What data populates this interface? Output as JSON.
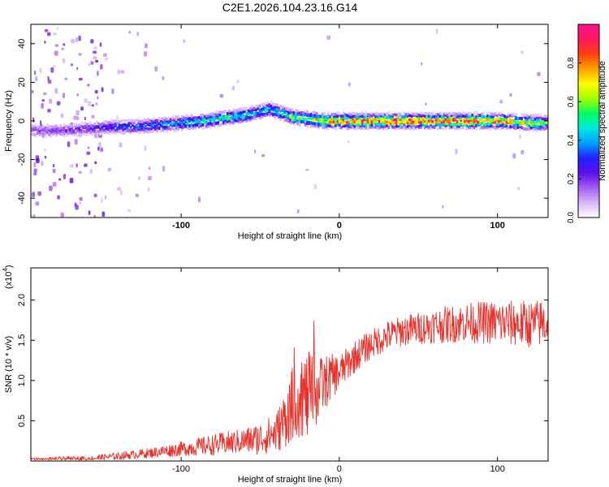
{
  "title": "C2E1.2026.104.23.16.G14",
  "chart_data": [
    {
      "type": "heatmap",
      "name": "spectrogram",
      "xlabel": "Height of straight line (km)",
      "ylabel": "Frequency (Hz)",
      "xlim": [
        -195,
        132
      ],
      "ylim": [
        -50,
        50
      ],
      "xticks": [
        -100,
        0,
        100
      ],
      "yticks": [
        -40,
        -20,
        0,
        20,
        40
      ],
      "colorbar": {
        "label": "Normalized spectral amplitude",
        "range": [
          0,
          1
        ],
        "ticks": [
          "0.0",
          "0.2",
          "0.4",
          "0.6",
          "0.8"
        ],
        "colors": [
          "#ffffff",
          "#d8b6f6",
          "#a55cf2",
          "#5a10e8",
          "#2020ff",
          "#00a0ff",
          "#00e8e0",
          "#00ff60",
          "#a0ff00",
          "#ffff00",
          "#ffa000",
          "#ff4010",
          "#ff1860",
          "#ff1090"
        ]
      },
      "ridge": {
        "description_x_km": [
          -195,
          -180,
          -160,
          -145,
          -130,
          -115,
          -100,
          -85,
          -70,
          -60,
          -50,
          -45,
          -40,
          -30,
          -20,
          -10,
          0,
          20,
          40,
          60,
          80,
          100,
          120,
          132
        ],
        "frequency_hz": [
          -5,
          -5,
          -4,
          -3,
          -3,
          -2,
          -1,
          0,
          2,
          3,
          5,
          6,
          5,
          2,
          1,
          0,
          0,
          0,
          0,
          0,
          0,
          0,
          -1,
          -1
        ],
        "amplitude": [
          0.18,
          0.2,
          0.22,
          0.3,
          0.35,
          0.4,
          0.45,
          0.5,
          0.55,
          0.5,
          0.45,
          0.45,
          0.5,
          0.6,
          0.7,
          0.8,
          0.85,
          0.9,
          0.95,
          0.95,
          0.9,
          0.85,
          0.7,
          0.6
        ]
      }
    },
    {
      "type": "line",
      "name": "snr",
      "xlabel": "Height of straight line (km)",
      "ylabel": "SNR (10 * v/v)",
      "y_multiplier_label": "(x10",
      "y_multiplier_exp": "4",
      "y_multiplier_close": ")",
      "xlim": [
        -195,
        132
      ],
      "ylim": [
        0,
        2.4
      ],
      "xticks": [
        -100,
        0,
        100
      ],
      "yticks": [
        "0.5",
        "1.0",
        "1.5",
        "2.0"
      ],
      "line_color": "#e8302a",
      "envelope": {
        "x": [
          -195,
          -160,
          -140,
          -120,
          -100,
          -80,
          -60,
          -50,
          -40,
          -35,
          -30,
          -25,
          -20,
          -15,
          -10,
          -5,
          0,
          10,
          20,
          30,
          40,
          60,
          80,
          100,
          120,
          132
        ],
        "y": [
          0.02,
          0.03,
          0.06,
          0.1,
          0.15,
          0.2,
          0.25,
          0.28,
          0.35,
          0.5,
          0.7,
          0.8,
          0.8,
          0.85,
          0.95,
          1.05,
          1.1,
          1.3,
          1.45,
          1.55,
          1.62,
          1.68,
          1.72,
          1.72,
          1.7,
          1.72
        ]
      },
      "noise": {
        "x": [
          -195,
          -150,
          -120,
          -100,
          -80,
          -60,
          -40,
          -30,
          -20,
          -10,
          0,
          20,
          50,
          100,
          132
        ],
        "amp": [
          0.02,
          0.04,
          0.06,
          0.09,
          0.13,
          0.16,
          0.25,
          0.45,
          0.55,
          0.35,
          0.22,
          0.18,
          0.2,
          0.28,
          0.3
        ]
      }
    }
  ]
}
